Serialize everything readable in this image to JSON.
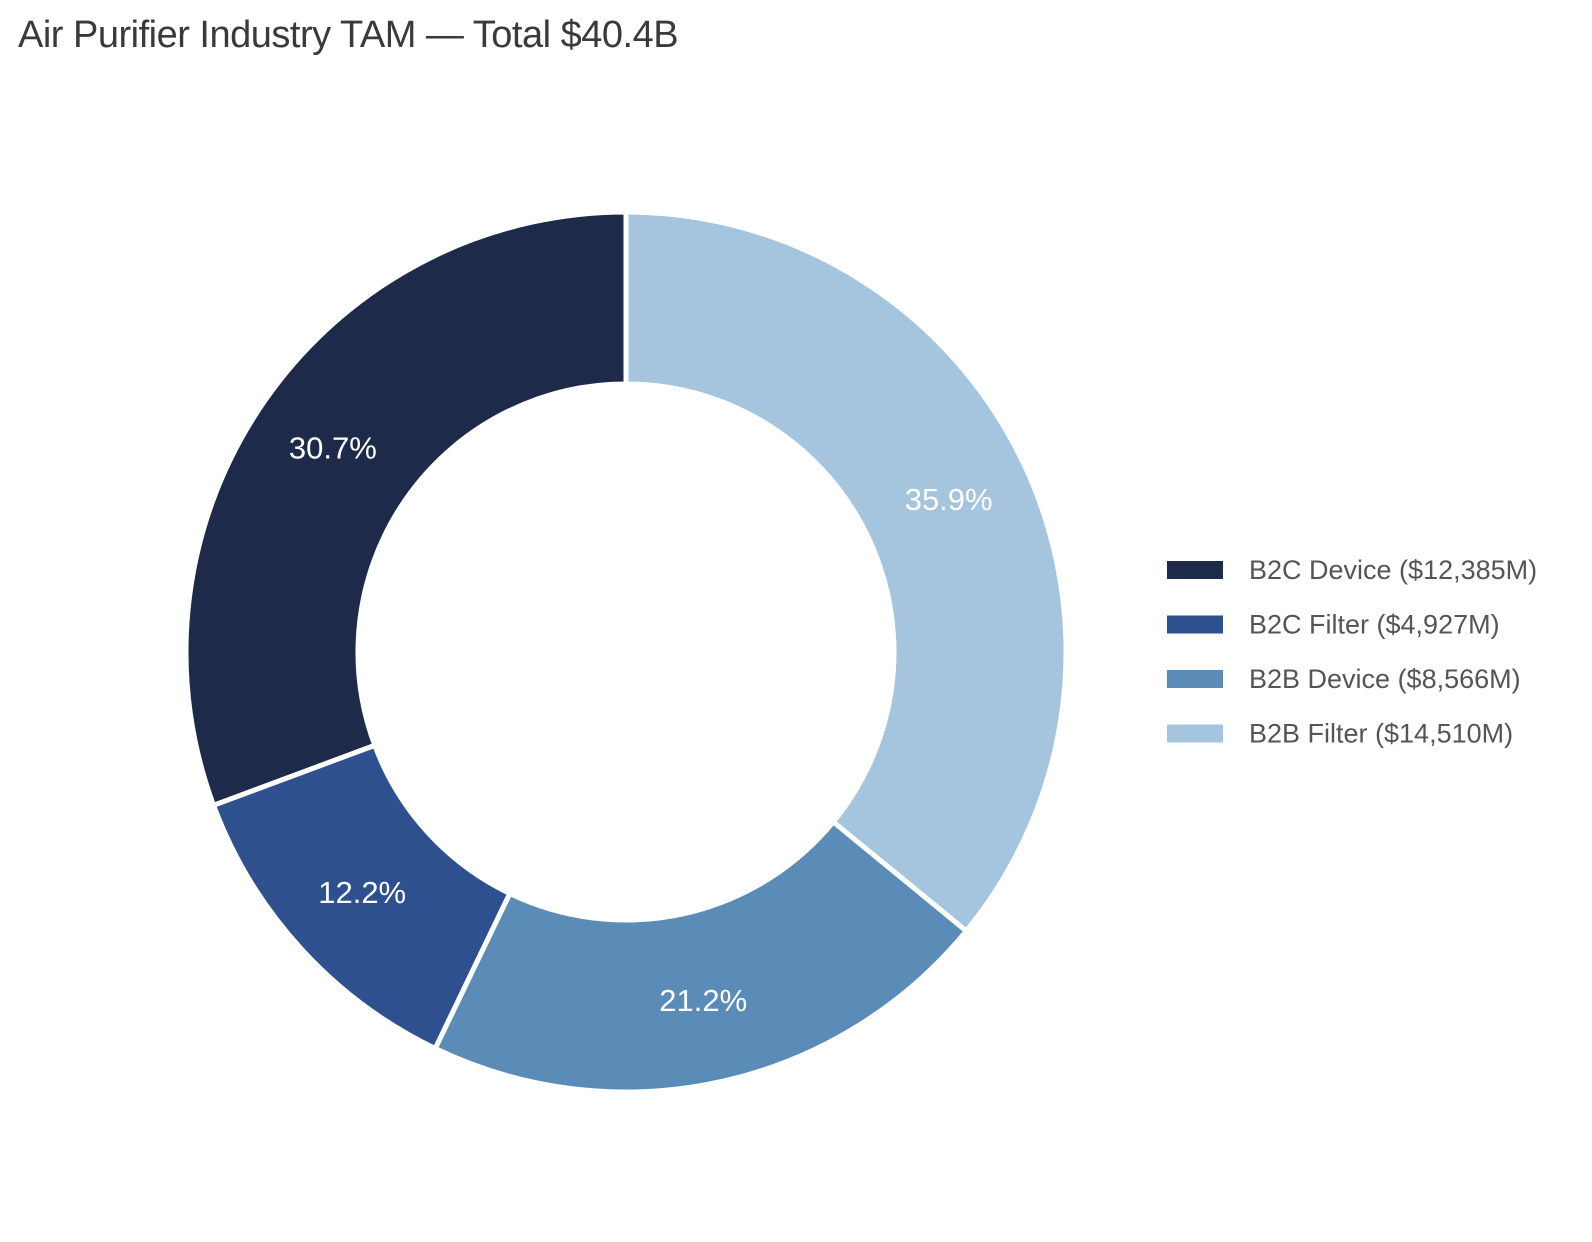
{
  "chart_data": {
    "type": "pie",
    "donut": true,
    "title": "Air Purifier Industry TAM — Total $40.4B",
    "unit": "$M",
    "start": "12 o'clock",
    "direction": "counterclockwise",
    "legend_position": "right",
    "slices": [
      {
        "name": "B2C Device",
        "value": 12385,
        "percent_label": "30.7%",
        "legend_label": "B2C Device ($12,385M)",
        "color": "#1e2a4a"
      },
      {
        "name": "B2C Filter",
        "value": 4927,
        "percent_label": "12.2%",
        "legend_label": "B2C Filter ($4,927M)",
        "color": "#2e508f"
      },
      {
        "name": "B2B Device",
        "value": 8566,
        "percent_label": "21.2%",
        "legend_label": "B2B Device ($8,566M)",
        "color": "#5b8cb8"
      },
      {
        "name": "B2B Filter",
        "value": 14510,
        "percent_label": "35.9%",
        "legend_label": "B2B Filter ($14,510M)",
        "color": "#a5c4dd"
      }
    ]
  }
}
